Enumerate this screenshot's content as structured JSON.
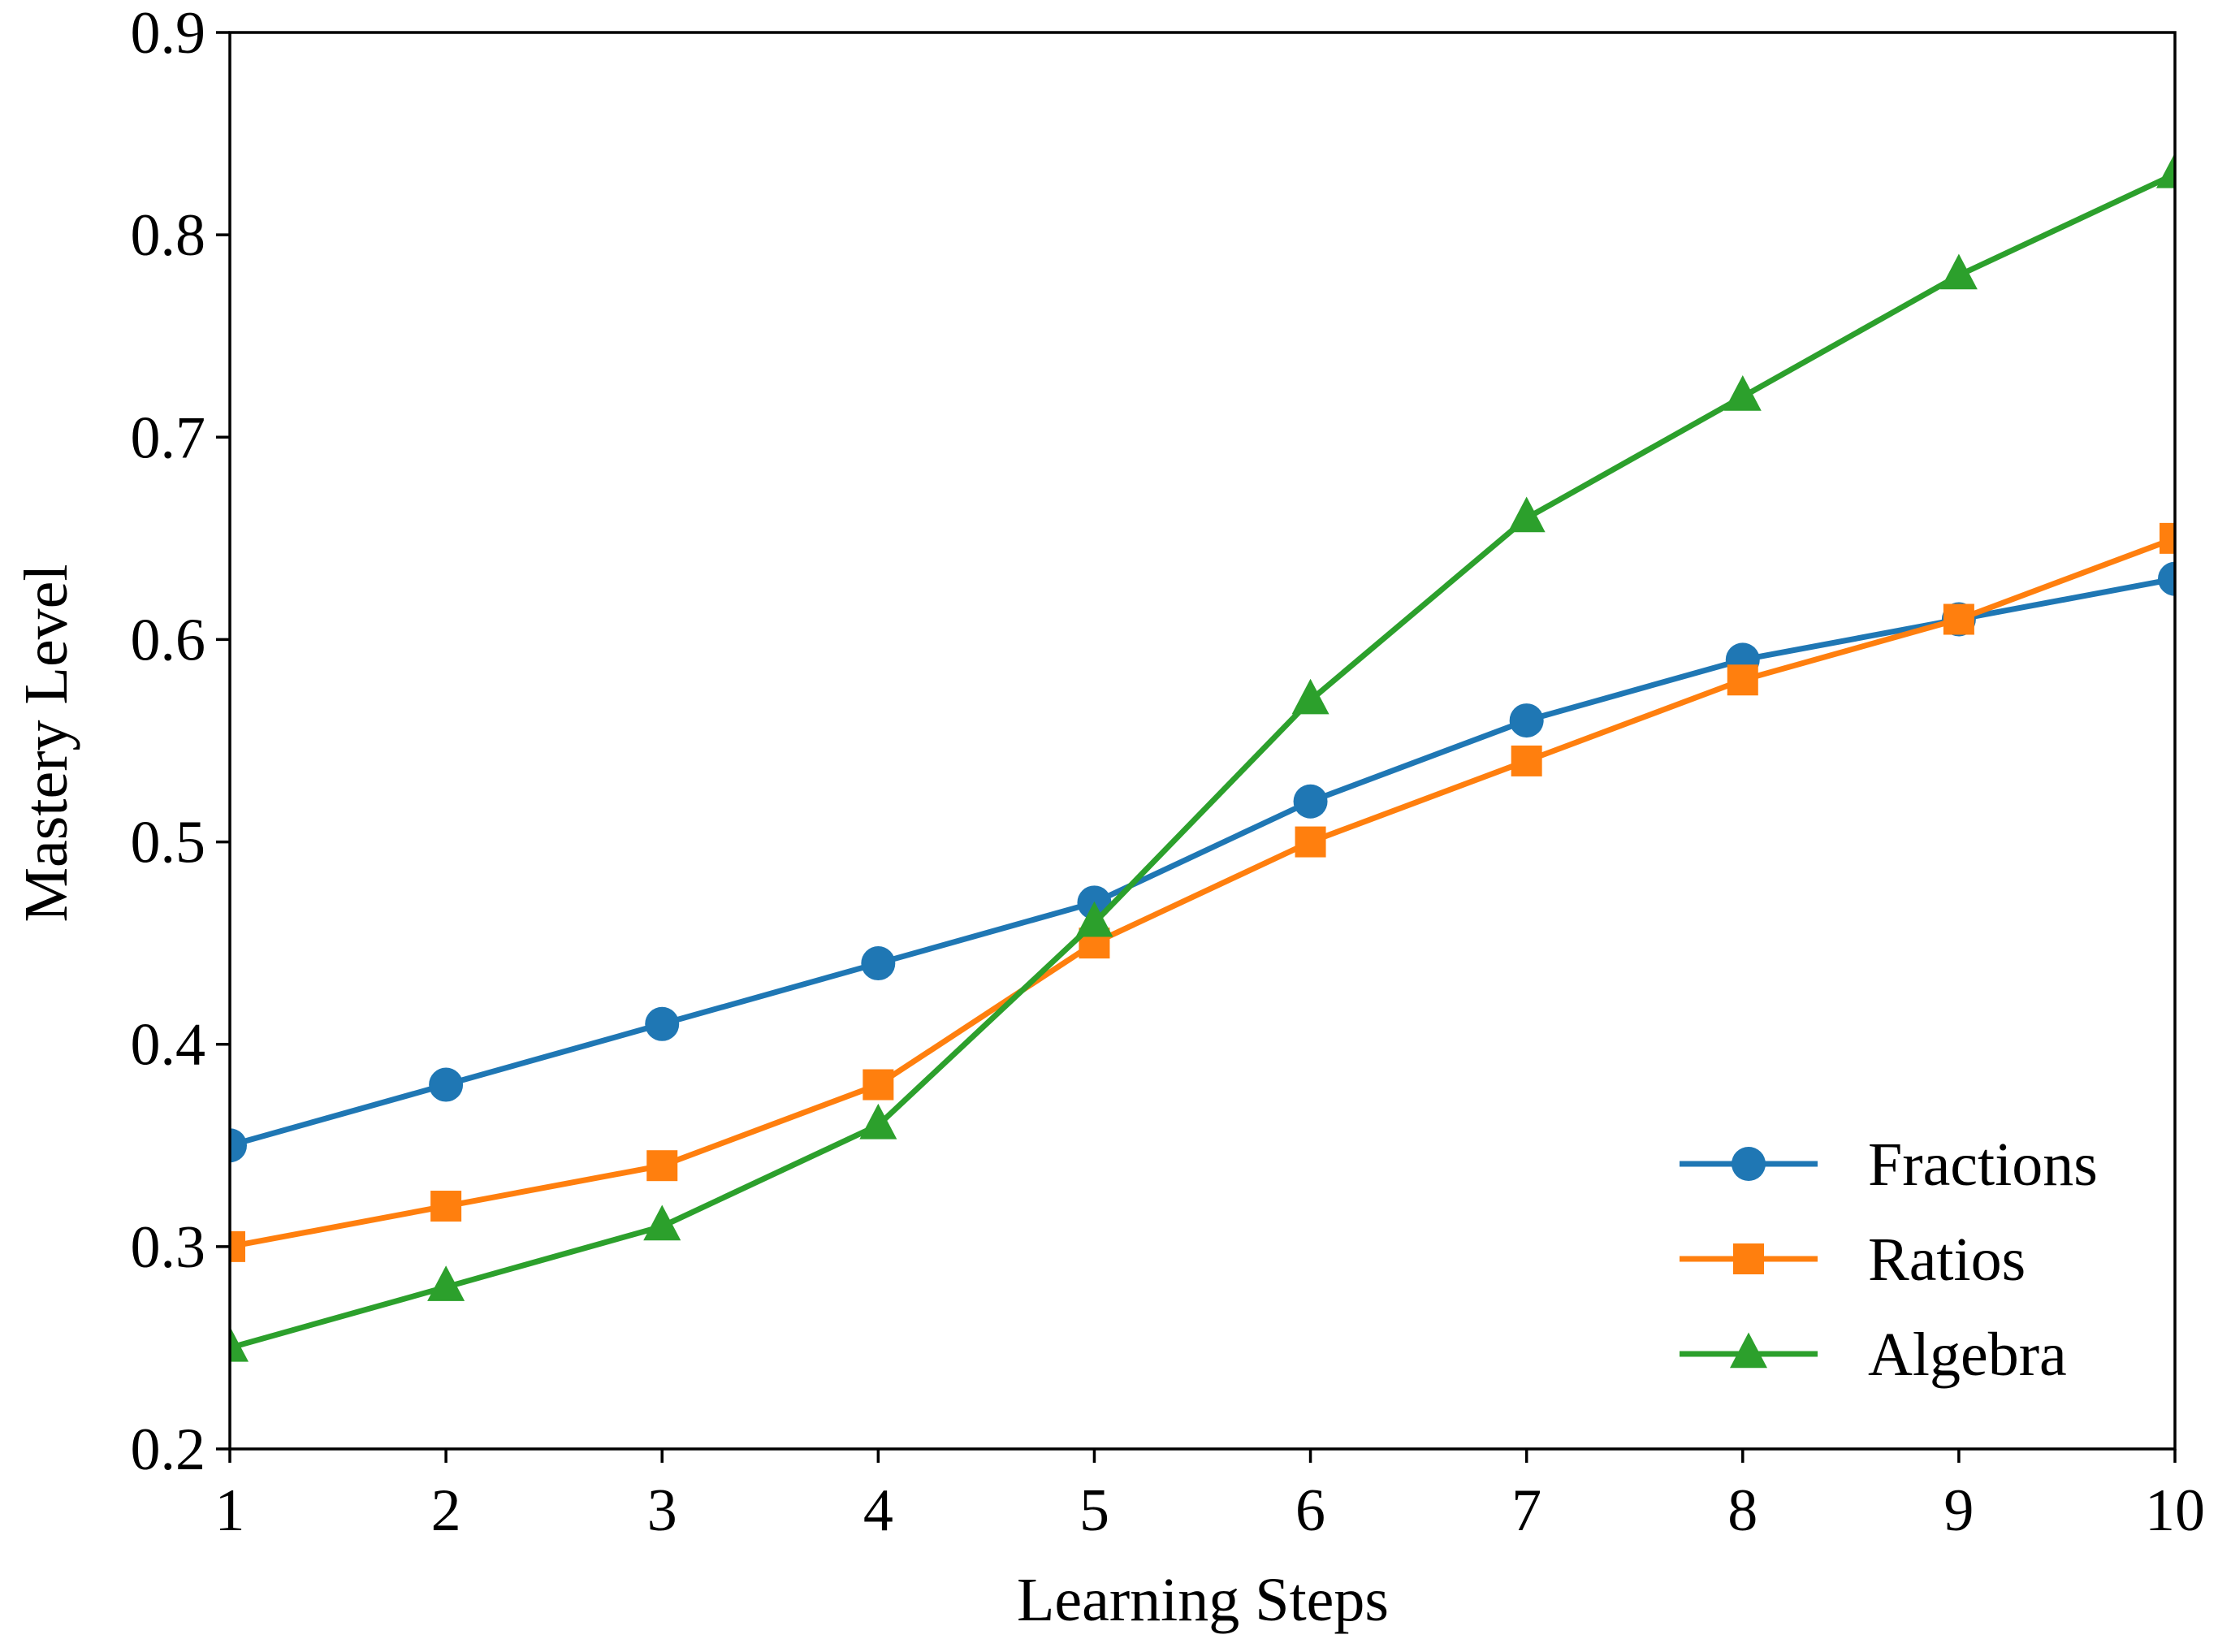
{
  "chart_data": {
    "type": "line",
    "xlabel": "Learning Steps",
    "ylabel": "Mastery Level",
    "xlim": [
      1,
      10
    ],
    "ylim": [
      0.2,
      0.9
    ],
    "xticks": [
      "1",
      "2",
      "3",
      "4",
      "5",
      "6",
      "7",
      "8",
      "9",
      "10"
    ],
    "yticks": [
      "0.2",
      "0.3",
      "0.4",
      "0.5",
      "0.6",
      "0.7",
      "0.8",
      "0.9"
    ],
    "grid": false,
    "legend_position": "lower-right",
    "x": [
      1,
      2,
      3,
      4,
      5,
      6,
      7,
      8,
      9,
      10
    ],
    "series": [
      {
        "name": "Fractions",
        "color": "#1f77b4",
        "marker": "circle",
        "values": [
          0.35,
          0.38,
          0.41,
          0.44,
          0.47,
          0.52,
          0.56,
          0.59,
          0.61,
          0.63
        ]
      },
      {
        "name": "Ratios",
        "color": "#ff7f0e",
        "marker": "square",
        "values": [
          0.3,
          0.32,
          0.34,
          0.38,
          0.45,
          0.5,
          0.54,
          0.58,
          0.61,
          0.65
        ]
      },
      {
        "name": "Algebra",
        "color": "#2ca02c",
        "marker": "triangle",
        "values": [
          0.25,
          0.28,
          0.31,
          0.36,
          0.46,
          0.57,
          0.66,
          0.72,
          0.78,
          0.83
        ]
      }
    ]
  }
}
